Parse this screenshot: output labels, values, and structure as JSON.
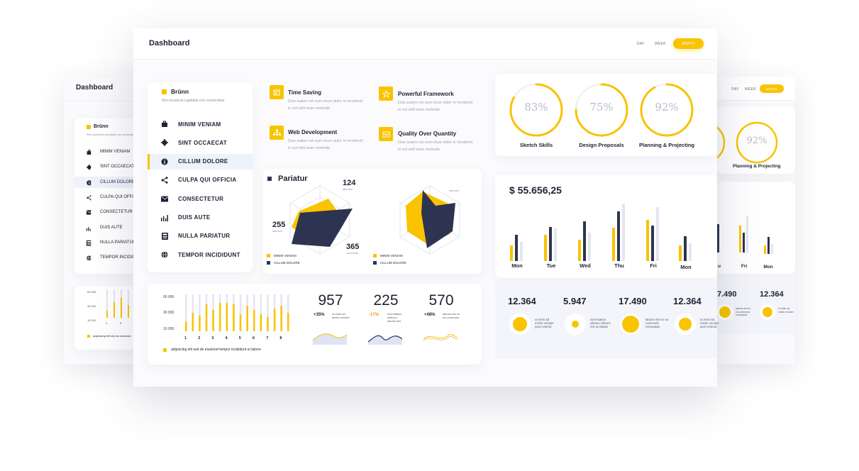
{
  "left_back": {
    "title": "Dashboard",
    "brand": "Brünn",
    "tagline": "Sim occaecat cupidatat non consectetur",
    "nav": [
      "MINIM VENIAM",
      "SINT OCCAECAT",
      "CILLUM DOLORE",
      "CULPA QUI OFFICIA",
      "CONSECTETUR",
      "DUIS AUTE",
      "NULLA PARIATUR",
      "TEMPOR INCIDIDUNT"
    ],
    "y_ticks": [
      "60 000",
      "30 000",
      "10 000"
    ],
    "x_ticks": [
      "1",
      "2",
      "3"
    ],
    "legend": "adipiscing elit sed do eiusmod"
  },
  "right_back": {
    "tabs": [
      "DAY",
      "WEEK",
      "MONTH"
    ],
    "rings": [
      {
        "label": "ls",
        "value": ""
      },
      {
        "label": "Planning & Projecting",
        "value": "92%"
      }
    ],
    "days": [
      "u",
      "Fri",
      "Mon"
    ],
    "stats": [
      {
        "num": "7.490",
        "text": "laboris nisi ex ea commodo consequat"
      },
      {
        "num": "12.364",
        "text": "ut enim ad minim veniam"
      }
    ]
  },
  "header": {
    "title": "Dashboard",
    "tabs": [
      "DAY",
      "WEEK",
      "MONTH"
    ],
    "active_tab": "MONTH"
  },
  "sidebar": {
    "brand": "Brünn",
    "tagline": "Sim occaecat cupidatat non consectetur",
    "items": [
      {
        "label": "MINIM VENIAM",
        "icon": "briefcase-icon"
      },
      {
        "label": "SINT OCCAECAT",
        "icon": "gear-icon"
      },
      {
        "label": "CILLUM DOLORE",
        "icon": "info-icon",
        "active": true
      },
      {
        "label": "CULPA QUI OFFICIA",
        "icon": "share-icon"
      },
      {
        "label": "CONSECTETUR",
        "icon": "mail-icon"
      },
      {
        "label": "DUIS AUTE",
        "icon": "bar-chart-icon"
      },
      {
        "label": "NULLA PARIATUR",
        "icon": "calculator-icon"
      },
      {
        "label": "TEMPOR INCIDIDUNT",
        "icon": "globe-icon"
      }
    ]
  },
  "features": [
    {
      "title": "Time Saving",
      "icon": "calendar-icon",
      "desc": "Duis autem vel eum iriure dolor in hendrerit in vul velit esse molestie"
    },
    {
      "title": "Powerful Framework",
      "icon": "star-icon",
      "desc": "Duis autem vel eum iriure dolor in hendrerit in vul velit esse molestie"
    },
    {
      "title": "Web Development",
      "icon": "sitemap-icon",
      "desc": "Duis autem vel eum iriure dolor in hendrerit in vul velit esse molestie"
    },
    {
      "title": "Quality Over Quantity",
      "icon": "inbox-icon",
      "desc": "Duis autem vel eum iriure dolor in hendrerit in vul velit esse molestie"
    }
  ],
  "rings": [
    {
      "label": "Sketch Skills",
      "value": "83%",
      "fraction": 0.83
    },
    {
      "label": "Design Proposals",
      "value": "75%",
      "fraction": 0.75
    },
    {
      "label": "Planning & Projecting",
      "value": "92%",
      "fraction": 0.92
    }
  ],
  "pariatur": {
    "title": "Pariatur",
    "num_top": "124",
    "num_top_sub": "laborum",
    "num_left": "255",
    "num_left_sub": "laborum",
    "num_bottom": "365",
    "num_bottom_sub": "commodo",
    "right_label": "laborum",
    "legend1": "MINIM VENIAM",
    "legend2": "CILLUM DOLORE"
  },
  "balance": {
    "amount": "$ 55.656,25",
    "days": [
      "Mon",
      "Tue",
      "Wed",
      "Thu",
      "Fri",
      "Mon"
    ]
  },
  "bar_chart_small": {
    "y_ticks": [
      "60 000",
      "30 000",
      "10 000"
    ],
    "x_ticks": [
      "1",
      "2",
      "3",
      "4",
      "5",
      "6",
      "7",
      "8"
    ],
    "legend": "adipiscing elit sed do eiusmod tempor incididunt ut labore"
  },
  "kpis": [
    {
      "num": "957",
      "pct": "+35%",
      "pct_color": "#1f2233",
      "text": "ut enim ad minim veniam"
    },
    {
      "num": "225",
      "pct": "-17%",
      "pct_color": "#f29b00",
      "text": "exercitation ullamco laboris nisi"
    },
    {
      "num": "570",
      "pct": "+48%",
      "pct_color": "#1f2233",
      "text": "laboris nisi ex ea commodo"
    }
  ],
  "stats": [
    {
      "num": "12.364",
      "text": "ut enim ad minim veniam quis nostrud"
    },
    {
      "num": "5.947",
      "text": "exercitation ullamco laboris nisi ut aliquip"
    },
    {
      "num": "17.490",
      "text": "laboris nisi ex ea commodo consequat"
    },
    {
      "num": "12.364",
      "text": "ut enim ad minim veniam quis nostrud"
    }
  ],
  "colors": {
    "accent": "#f9c300",
    "navy": "#2d3451",
    "light": "#e3e6f0"
  }
}
